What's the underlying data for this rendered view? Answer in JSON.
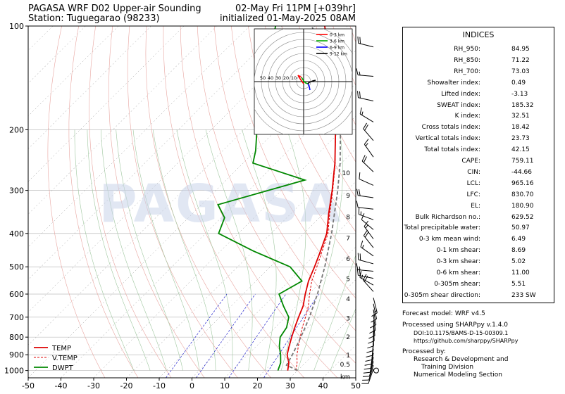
{
  "header": {
    "title_line1": "PAGASA WRF D02 Upper-air Sounding",
    "title_line2": "Station: Tuguegarao (98233)",
    "valid_line": "02-May Fri 11PM [+039hr]",
    "init_line": "initialized 01-May-2025 08AM"
  },
  "watermark": "PAGASA",
  "colors": {
    "temp": "#dd0000",
    "vtemp": "#dd0000",
    "dwpt": "#008800",
    "parcel": "#777777",
    "isotherm": "#999999",
    "dry_adiabat": "#e8a5a0",
    "moist_adiabat": "#9fc79f",
    "mixing_ratio": "#2222cc"
  },
  "chart_data": {
    "type": "skew-t",
    "pressure_axis": {
      "scale": "log",
      "range": [
        1050,
        100
      ],
      "ticks": [
        1000,
        900,
        800,
        700,
        600,
        500,
        400,
        300,
        200,
        100
      ]
    },
    "temperature_axis": {
      "range": [
        -50,
        50
      ],
      "ticks": [
        -50,
        -40,
        -30,
        -20,
        -10,
        0,
        10,
        20,
        30,
        40,
        50
      ]
    },
    "height_labels_km": [
      "km",
      "0.5",
      "1",
      "2",
      "3",
      "4",
      "5",
      "6",
      "7",
      "8",
      "9",
      "10"
    ],
    "legend": {
      "items": [
        "TEMP",
        "V.TEMP",
        "DWPT"
      ],
      "placement": "bottom-left"
    },
    "series": [
      {
        "name": "TEMP",
        "points": [
          [
            1000,
            27
          ],
          [
            950,
            25
          ],
          [
            900,
            22
          ],
          [
            850,
            20
          ],
          [
            800,
            18
          ],
          [
            750,
            16
          ],
          [
            700,
            14
          ],
          [
            650,
            12
          ],
          [
            600,
            9
          ],
          [
            550,
            6
          ],
          [
            500,
            3.5
          ],
          [
            450,
            0.5
          ],
          [
            400,
            -3
          ],
          [
            350,
            -8.5
          ],
          [
            300,
            -14.5
          ],
          [
            250,
            -22
          ],
          [
            200,
            -32
          ],
          [
            175,
            -38.5
          ],
          [
            150,
            -46
          ],
          [
            125,
            -55
          ],
          [
            110,
            -62
          ],
          [
            100,
            -67
          ]
        ]
      },
      {
        "name": "V.TEMP",
        "points": [
          [
            1000,
            29.5
          ],
          [
            950,
            27.5
          ],
          [
            900,
            25
          ],
          [
            850,
            22.8
          ],
          [
            800,
            20.6
          ],
          [
            750,
            18.3
          ],
          [
            700,
            16.1
          ],
          [
            650,
            13.6
          ],
          [
            600,
            10.3
          ],
          [
            550,
            7
          ],
          [
            500,
            4.2
          ],
          [
            450,
            1
          ],
          [
            400,
            -2.6
          ],
          [
            350,
            -8.2
          ],
          [
            300,
            -14.3
          ],
          [
            250,
            -21.9
          ],
          [
            200,
            -32
          ]
        ]
      },
      {
        "name": "DWPT",
        "points": [
          [
            1000,
            24
          ],
          [
            950,
            22.5
          ],
          [
            900,
            20
          ],
          [
            850,
            17
          ],
          [
            800,
            14.5
          ],
          [
            750,
            13.5
          ],
          [
            700,
            11
          ],
          [
            650,
            6
          ],
          [
            600,
            1
          ],
          [
            550,
            4
          ],
          [
            500,
            -4
          ],
          [
            450,
            -20
          ],
          [
            400,
            -36
          ],
          [
            360,
            -39
          ],
          [
            330,
            -45
          ],
          [
            300,
            -34
          ],
          [
            280,
            -26
          ],
          [
            250,
            -47
          ],
          [
            230,
            -50
          ],
          [
            200,
            -56
          ],
          [
            170,
            -63
          ],
          [
            140,
            -70
          ],
          [
            100,
            -82
          ]
        ]
      },
      {
        "name": "parcel",
        "points": [
          [
            1000,
            30
          ],
          [
            965,
            25
          ],
          [
            900,
            23.6
          ],
          [
            830,
            21.7
          ],
          [
            760,
            19.5
          ],
          [
            700,
            17.3
          ],
          [
            600,
            12.7
          ],
          [
            500,
            6.6
          ],
          [
            400,
            -1.5
          ],
          [
            300,
            -12.8
          ],
          [
            250,
            -20.4
          ],
          [
            200,
            -30.5
          ],
          [
            181,
            -35.5
          ],
          [
            150,
            -46.5
          ],
          [
            125,
            -56
          ],
          [
            100,
            -71
          ]
        ]
      }
    ],
    "hodograph": {
      "range_labels": [
        "50",
        "40",
        "30",
        "20",
        "10"
      ],
      "legend": [
        "0-3 km",
        "3-6 km",
        "6-9 km",
        "9-12 km"
      ],
      "legend_colors": [
        "#ff0000",
        "#00aa00",
        "#0000ff",
        "#000000"
      ],
      "segments": [
        {
          "name": "0-3 km",
          "color": "#ff0000",
          "points": [
            [
              0,
              -3
            ],
            [
              -5,
              4
            ],
            [
              -8,
              9
            ],
            [
              -3,
              6
            ]
          ]
        },
        {
          "name": "3-6 km",
          "color": "#00aa00",
          "points": [
            [
              -3,
              6
            ],
            [
              0,
              1
            ],
            [
              3,
              -2
            ],
            [
              6,
              -3
            ]
          ]
        },
        {
          "name": "6-9 km",
          "color": "#0000ff",
          "points": [
            [
              6,
              -3
            ],
            [
              8,
              -7
            ],
            [
              9,
              -12
            ]
          ]
        },
        {
          "name": "9-12 km",
          "color": "#000000",
          "points": [
            [
              6,
              -3
            ],
            [
              8,
              -1
            ],
            [
              13,
              1
            ],
            [
              17,
              2
            ]
          ]
        }
      ]
    }
  },
  "indices": {
    "title": "INDICES",
    "rows": [
      {
        "label": "RH_950:",
        "value": "84.95"
      },
      {
        "label": "RH_850:",
        "value": "71.22"
      },
      {
        "label": "RH_700:",
        "value": "73.03"
      },
      {
        "label": "Showalter index:",
        "value": "0.49"
      },
      {
        "label": "Lifted index:",
        "value": "-3.13"
      },
      {
        "label": "SWEAT index:",
        "value": "185.32"
      },
      {
        "label": "K index:",
        "value": "32.51"
      },
      {
        "label": "Cross totals index:",
        "value": "18.42"
      },
      {
        "label": "Vertical totals index:",
        "value": "23.73"
      },
      {
        "label": "Total totals index:",
        "value": "42.15"
      },
      {
        "label": "CAPE:",
        "value": "759.11"
      },
      {
        "label": "CIN:",
        "value": "-44.66"
      },
      {
        "label": "LCL:",
        "value": "965.16"
      },
      {
        "label": "LFC:",
        "value": "830.70"
      },
      {
        "label": "EL:",
        "value": "180.90"
      },
      {
        "label": "Bulk Richardson no.:",
        "value": "629.52"
      },
      {
        "label": "Total precipitable water:",
        "value": "50.97"
      },
      {
        "label": "0-3 km mean wind:",
        "value": "6.49"
      },
      {
        "label": "0-1 km shear:",
        "value": "8.69"
      },
      {
        "label": "0-3 km shear:",
        "value": "5.02"
      },
      {
        "label": "0-6 km shear:",
        "value": "11.00"
      },
      {
        "label": "0-305m shear:",
        "value": "5.51"
      },
      {
        "label": "0-305m shear direction:",
        "value": "233 SW"
      }
    ]
  },
  "notes": {
    "forecast_model": "Forecast model: WRF v4.5",
    "processed_using": "Processed using SHARPpy v.1.4.0",
    "doi": "DOI:10.1175/BAMS-D-15-00309.1",
    "github": "https://github.com/sharppy/SHARPpy",
    "processed_by": "Processed by:",
    "org_line1": "Research & Development and",
    "org_line2": "Training Division",
    "org_line3": "Numerical Modeling Section"
  }
}
